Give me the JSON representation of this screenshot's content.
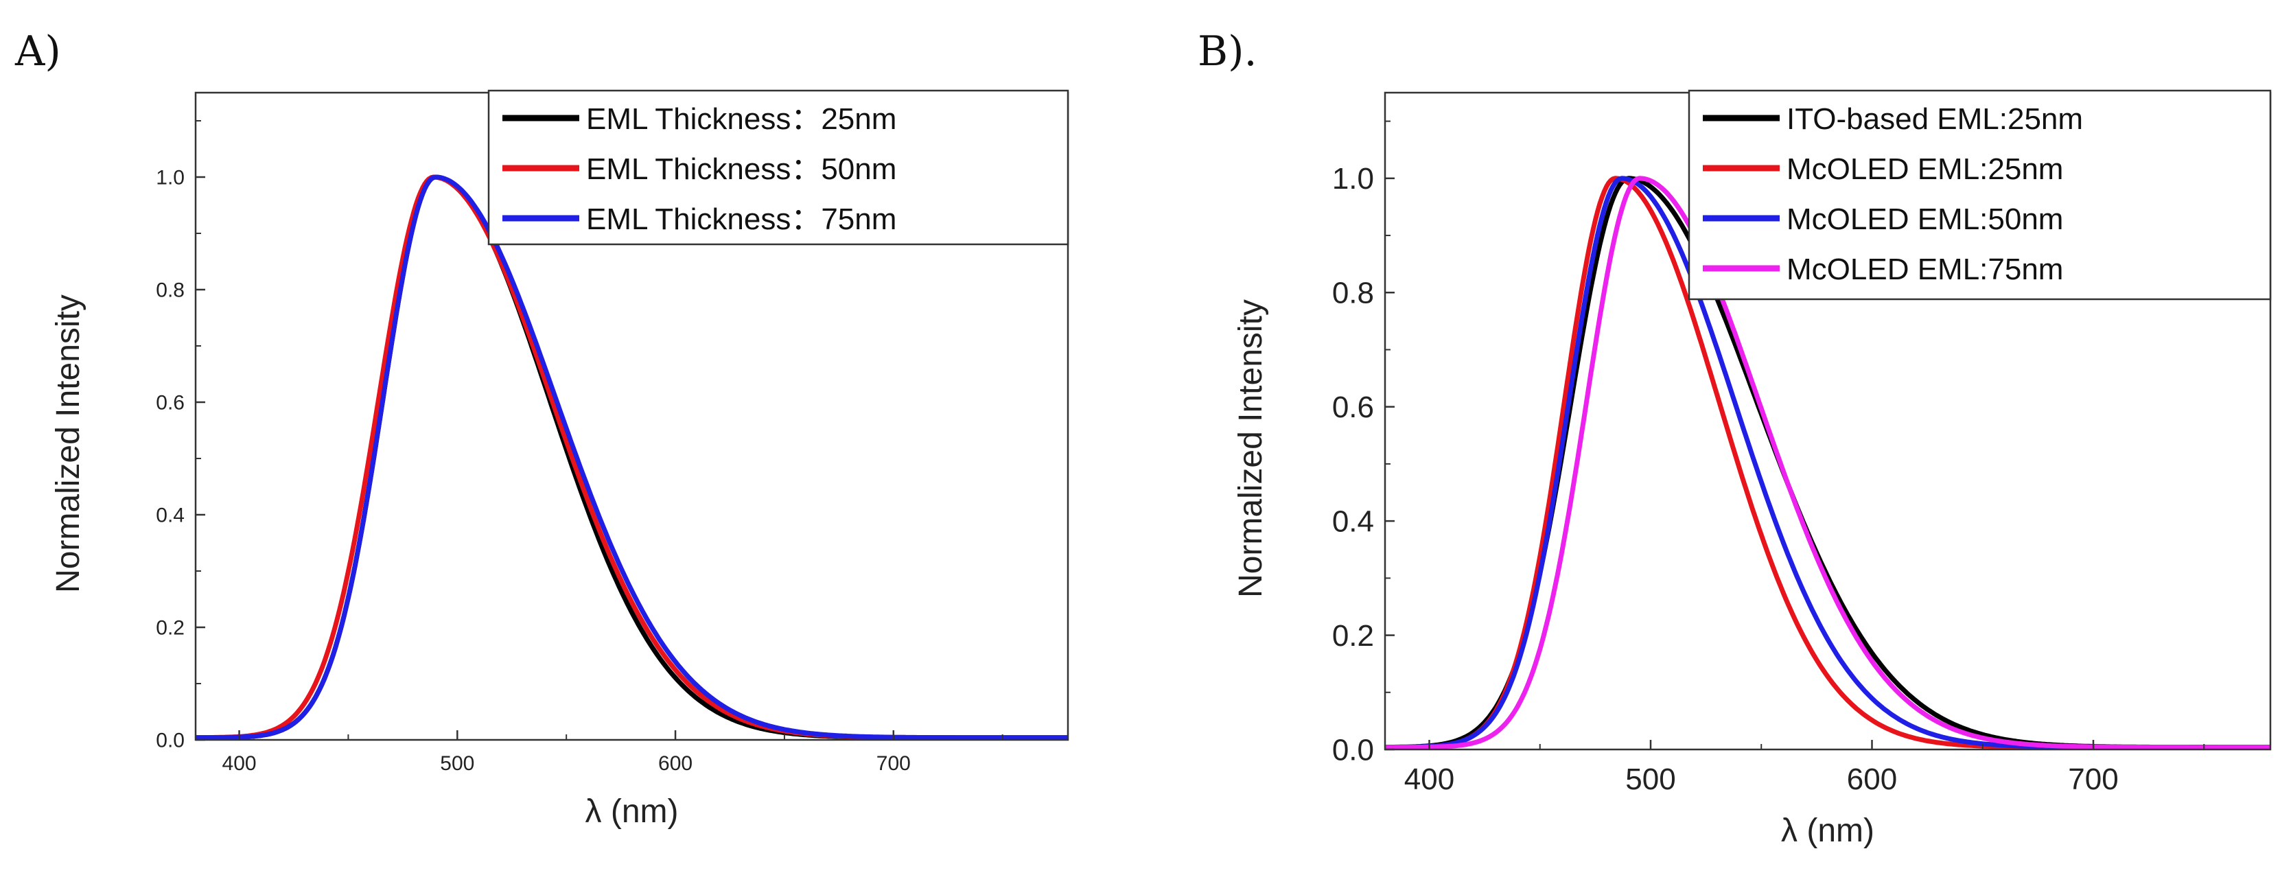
{
  "panels": [
    {
      "label": "A)",
      "chart_data": {
        "type": "line",
        "title": "",
        "xlabel": "λ (nm)",
        "ylabel": "Normalized Intensity",
        "xlim": [
          380,
          780
        ],
        "ylim": [
          0,
          1.15
        ],
        "xticks": [
          400,
          500,
          600,
          700
        ],
        "yticks": [
          0.0,
          0.2,
          0.4,
          0.6,
          0.8,
          1.0
        ],
        "xtick_labels": [
          "400",
          "500",
          "600",
          "700"
        ],
        "ytick_labels": [
          "0.0",
          "0.2",
          "0.4",
          "0.6",
          "0.8",
          "1.0"
        ],
        "legend_position": "top-right",
        "series": [
          {
            "name": "EML Thickness：25nm",
            "color": "#000000",
            "peak": 490,
            "sigma_left": 24,
            "sigma_right": 52
          },
          {
            "name": "EML Thickness：50nm",
            "color": "#e8141c",
            "peak": 489,
            "sigma_left": 25,
            "sigma_right": 54
          },
          {
            "name": "EML Thickness：75nm",
            "color": "#1f1fe6",
            "peak": 490,
            "sigma_left": 24,
            "sigma_right": 55
          }
        ]
      }
    },
    {
      "label": "B).",
      "chart_data": {
        "type": "line",
        "title": "",
        "xlabel": "λ (nm)",
        "ylabel": "Normalized Intensity",
        "xlim": [
          380,
          780
        ],
        "ylim": [
          0,
          1.15
        ],
        "xticks": [
          400,
          500,
          600,
          700
        ],
        "yticks": [
          0.0,
          0.2,
          0.4,
          0.6,
          0.8,
          1.0
        ],
        "xtick_labels": [
          "400",
          "500",
          "600",
          "700"
        ],
        "ytick_labels": [
          "0.0",
          "0.2",
          "0.4",
          "0.6",
          "0.8",
          "1.0"
        ],
        "legend_position": "top-right",
        "series": [
          {
            "name": "ITO-based EML:25nm",
            "color": "#000000",
            "peak": 490,
            "sigma_left": 26,
            "sigma_right": 58
          },
          {
            "name": "McOLED EML:25nm",
            "color": "#e8141c",
            "peak": 484,
            "sigma_left": 23,
            "sigma_right": 47
          },
          {
            "name": "McOLED EML:50nm",
            "color": "#1f1fe6",
            "peak": 487,
            "sigma_left": 24,
            "sigma_right": 51
          },
          {
            "name": "McOLED EML:75nm",
            "color": "#ee22ee",
            "peak": 495,
            "sigma_left": 24,
            "sigma_right": 54
          }
        ]
      }
    }
  ]
}
